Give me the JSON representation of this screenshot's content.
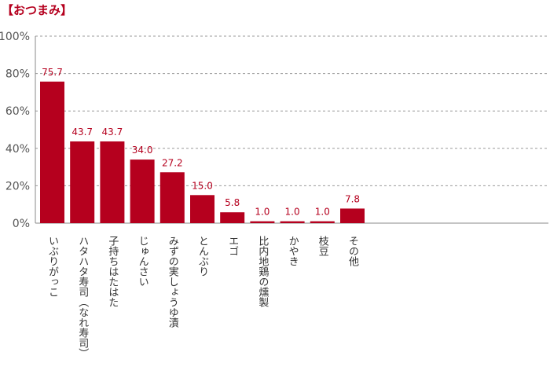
{
  "chart_data": {
    "type": "bar",
    "title": "【おつまみ】",
    "categories": [
      "いぶりがっこ",
      "ハタハタ寿司（なれ寿司）",
      "子持ちはたはた",
      "じゅんさい",
      "みずの実しょうゆ漬",
      "とんぶり",
      "エゴ",
      "比内地鶏の燻製",
      "かやき",
      "枝豆",
      "その他"
    ],
    "values": [
      75.7,
      43.7,
      43.7,
      34.0,
      27.2,
      15.0,
      5.8,
      1.0,
      1.0,
      1.0,
      7.8
    ],
    "value_labels": [
      "75.7",
      "43.7",
      "43.7",
      "34.0",
      "27.2",
      "15.0",
      "5.8",
      "1.0",
      "1.0",
      "1.0",
      "7.8"
    ],
    "ylim": [
      0,
      100
    ],
    "yticks": [
      "0%",
      "20%",
      "40%",
      "60%",
      "80%",
      "100%"
    ],
    "grid": true,
    "bar_color": "#b5001e",
    "label_color": "#b5001e"
  }
}
